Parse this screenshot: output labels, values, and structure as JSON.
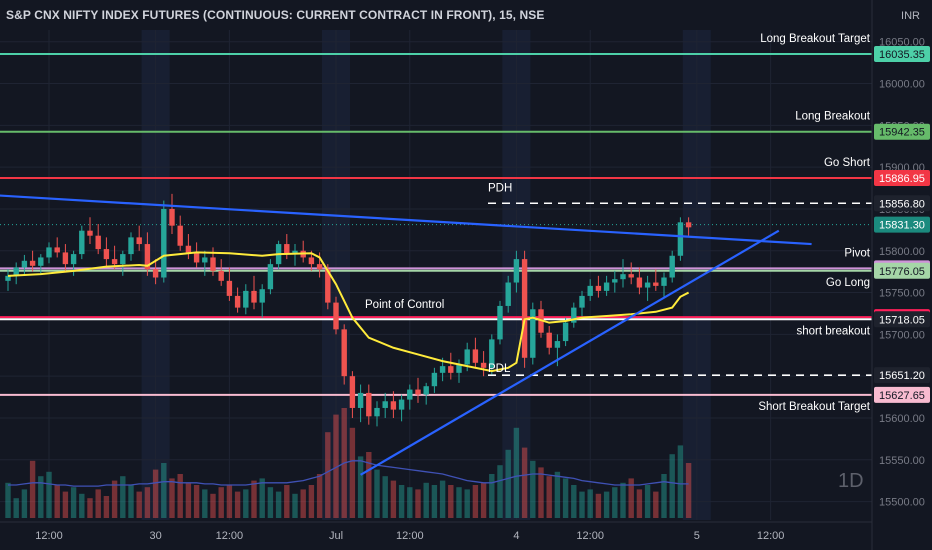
{
  "header": {
    "title": "S&P CNX NIFTY INDEX FUTURES (CONTINUOUS: CURRENT CONTRACT IN FRONT), 15, NSE",
    "currency": "INR"
  },
  "watermark": "1D",
  "chart_data": {
    "type": "candlestick",
    "ylim": [
      15478,
      16064
    ],
    "y_ticks": [
      {
        "value": 16050,
        "label": "16050.00"
      },
      {
        "value": 16000,
        "label": "16000.00"
      },
      {
        "value": 15950,
        "label": "15950.00"
      },
      {
        "value": 15900,
        "label": "15900.00"
      },
      {
        "value": 15850,
        "label": "15850.00"
      },
      {
        "value": 15800,
        "label": "15800.00"
      },
      {
        "value": 15750,
        "label": "15750.00"
      },
      {
        "value": 15700,
        "label": "15700.00"
      },
      {
        "value": 15650,
        "label": "15650.00"
      },
      {
        "value": 15600,
        "label": "15600.00"
      },
      {
        "value": 15550,
        "label": "15550.00"
      },
      {
        "value": 15500,
        "label": "15500.00"
      }
    ],
    "x_ticks": [
      {
        "label": "12:00",
        "slot": 5
      },
      {
        "label": "30",
        "slot": 18
      },
      {
        "label": "12:00",
        "slot": 27
      },
      {
        "label": "Jul",
        "slot": 40
      },
      {
        "label": "12:00",
        "slot": 49
      },
      {
        "label": "4",
        "slot": 62
      },
      {
        "label": "12:00",
        "slot": 71
      },
      {
        "label": "5",
        "slot": 84
      },
      {
        "label": "12:00",
        "slot": 93
      }
    ],
    "levels": [
      {
        "label": "Long Breakout Target",
        "value": 16035.35,
        "price": "16035.35",
        "color": "#4dd0a8",
        "style": "solid"
      },
      {
        "label": "Long Breakout",
        "value": 15942.35,
        "price": "15942.35",
        "color": "#66bb6a",
        "style": "solid"
      },
      {
        "label": "Go Short",
        "value": 15886.95,
        "price": "15886.95",
        "color": "#f23645",
        "style": "solid"
      },
      {
        "label": "PDH",
        "value": 15856.8,
        "price": "15856.80",
        "color": "#ffffff",
        "style": "dashed"
      },
      {
        "label": "",
        "value": 15831.3,
        "price": "15831.30",
        "color": "#26a69a",
        "style": "dotted"
      },
      {
        "label": "Pivot",
        "value": 15778.95,
        "price": "15778.95",
        "color": "#ce93d8",
        "style": "solid"
      },
      {
        "label": "Go Long",
        "value": 15776.05,
        "price": "15776.05",
        "color": "#a5d6a7",
        "style": "solid"
      },
      {
        "label": "Point of Control",
        "value": 15720.65,
        "price": "15720.65",
        "color": "#ff1f5a",
        "style": "solid"
      },
      {
        "label": "short breakout",
        "value": 15718.05,
        "price": "15718.05",
        "color": "#ffffff",
        "style": "solid"
      },
      {
        "label": "PDL",
        "value": 15651.2,
        "price": "15651.20",
        "color": "#ffffff",
        "style": "dashed"
      },
      {
        "label": "Short  Breakout Target",
        "value": 15627.65,
        "price": "15627.65",
        "color": "#f8bbd0",
        "style": "solid"
      }
    ],
    "candles": [
      [
        15764,
        15778,
        15752,
        15770
      ],
      [
        15770,
        15786,
        15760,
        15780
      ],
      [
        15780,
        15795,
        15770,
        15788
      ],
      [
        15788,
        15800,
        15775,
        15782
      ],
      [
        15782,
        15796,
        15772,
        15792
      ],
      [
        15792,
        15810,
        15785,
        15804
      ],
      [
        15804,
        15816,
        15792,
        15798
      ],
      [
        15798,
        15808,
        15776,
        15784
      ],
      [
        15784,
        15800,
        15770,
        15796
      ],
      [
        15796,
        15830,
        15790,
        15824
      ],
      [
        15824,
        15840,
        15808,
        15818
      ],
      [
        15818,
        15832,
        15796,
        15802
      ],
      [
        15802,
        15816,
        15780,
        15790
      ],
      [
        15790,
        15806,
        15778,
        15784
      ],
      [
        15784,
        15800,
        15770,
        15796
      ],
      [
        15796,
        15822,
        15788,
        15816
      ],
      [
        15816,
        15830,
        15800,
        15808
      ],
      [
        15808,
        15822,
        15770,
        15778
      ],
      [
        15778,
        15790,
        15760,
        15768
      ],
      [
        15768,
        15860,
        15762,
        15850
      ],
      [
        15850,
        15868,
        15820,
        15830
      ],
      [
        15830,
        15842,
        15800,
        15806
      ],
      [
        15806,
        15820,
        15790,
        15798
      ],
      [
        15798,
        15810,
        15780,
        15786
      ],
      [
        15786,
        15800,
        15770,
        15792
      ],
      [
        15792,
        15804,
        15770,
        15776
      ],
      [
        15776,
        15790,
        15758,
        15764
      ],
      [
        15764,
        15780,
        15740,
        15746
      ],
      [
        15746,
        15756,
        15726,
        15732
      ],
      [
        15732,
        15760,
        15724,
        15752
      ],
      [
        15752,
        15770,
        15730,
        15738
      ],
      [
        15738,
        15760,
        15720,
        15754
      ],
      [
        15754,
        15790,
        15748,
        15784
      ],
      [
        15784,
        15812,
        15778,
        15808
      ],
      [
        15808,
        15820,
        15790,
        15796
      ],
      [
        15796,
        15808,
        15782,
        15800
      ],
      [
        15800,
        15812,
        15786,
        15792
      ],
      [
        15792,
        15800,
        15776,
        15784
      ],
      [
        15784,
        15798,
        15768,
        15778
      ],
      [
        15778,
        15784,
        15730,
        15738
      ],
      [
        15738,
        15745,
        15700,
        15706
      ],
      [
        15706,
        15712,
        15640,
        15650
      ],
      [
        15650,
        15656,
        15600,
        15612
      ],
      [
        15612,
        15640,
        15595,
        15630
      ],
      [
        15630,
        15640,
        15592,
        15602
      ],
      [
        15602,
        15620,
        15590,
        15612
      ],
      [
        15612,
        15630,
        15600,
        15620
      ],
      [
        15620,
        15632,
        15600,
        15610
      ],
      [
        15610,
        15628,
        15596,
        15622
      ],
      [
        15622,
        15640,
        15610,
        15634
      ],
      [
        15634,
        15648,
        15618,
        15628
      ],
      [
        15628,
        15642,
        15616,
        15638
      ],
      [
        15638,
        15660,
        15630,
        15654
      ],
      [
        15654,
        15672,
        15644,
        15662
      ],
      [
        15662,
        15678,
        15646,
        15654
      ],
      [
        15654,
        15670,
        15642,
        15664
      ],
      [
        15664,
        15690,
        15656,
        15682
      ],
      [
        15682,
        15696,
        15660,
        15666
      ],
      [
        15666,
        15680,
        15650,
        15660
      ],
      [
        15660,
        15700,
        15652,
        15694
      ],
      [
        15694,
        15740,
        15688,
        15734
      ],
      [
        15734,
        15770,
        15726,
        15762
      ],
      [
        15762,
        15800,
        15750,
        15790
      ],
      [
        15790,
        15800,
        15660,
        15672
      ],
      [
        15672,
        15738,
        15664,
        15730
      ],
      [
        15730,
        15740,
        15696,
        15702
      ],
      [
        15702,
        15710,
        15676,
        15684
      ],
      [
        15684,
        15700,
        15662,
        15692
      ],
      [
        15692,
        15720,
        15686,
        15714
      ],
      [
        15714,
        15738,
        15708,
        15732
      ],
      [
        15732,
        15752,
        15722,
        15746
      ],
      [
        15746,
        15766,
        15740,
        15758
      ],
      [
        15758,
        15770,
        15744,
        15752
      ],
      [
        15752,
        15770,
        15746,
        15762
      ],
      [
        15762,
        15776,
        15750,
        15766
      ],
      [
        15766,
        15790,
        15756,
        15772
      ],
      [
        15772,
        15786,
        15760,
        15768
      ],
      [
        15768,
        15780,
        15748,
        15756
      ],
      [
        15756,
        15770,
        15740,
        15762
      ],
      [
        15762,
        15778,
        15752,
        15758
      ],
      [
        15758,
        15774,
        15744,
        15768
      ],
      [
        15768,
        15800,
        15762,
        15794
      ],
      [
        15794,
        15840,
        15788,
        15834
      ],
      [
        15834,
        15840,
        15818,
        15828
      ]
    ],
    "vwap": [
      [
        0,
        15770
      ],
      [
        4,
        15772
      ],
      [
        8,
        15776
      ],
      [
        12,
        15781
      ],
      [
        16,
        15783
      ],
      [
        17,
        15782
      ],
      [
        19,
        15794
      ],
      [
        23,
        15798
      ],
      [
        27,
        15797
      ],
      [
        31,
        15794
      ],
      [
        33,
        15796
      ],
      [
        37,
        15797
      ],
      [
        38,
        15792
      ],
      [
        40,
        15760
      ],
      [
        42,
        15720
      ],
      [
        44,
        15696
      ],
      [
        47,
        15684
      ],
      [
        50,
        15676
      ],
      [
        53,
        15668
      ],
      [
        56,
        15662
      ],
      [
        59,
        15656
      ],
      [
        61,
        15660
      ],
      [
        62,
        15666
      ],
      [
        63,
        15718
      ],
      [
        64,
        15720
      ],
      [
        66,
        15714
      ],
      [
        68,
        15716
      ],
      [
        70,
        15720
      ],
      [
        73,
        15722
      ],
      [
        76,
        15724
      ],
      [
        79,
        15727
      ],
      [
        81,
        15732
      ],
      [
        82,
        15745
      ],
      [
        83,
        15750
      ]
    ],
    "trendlines": [
      {
        "from": [
          -1,
          15866
        ],
        "to": [
          98,
          15808
        ]
      },
      {
        "from": [
          43,
          15532
        ],
        "to": [
          94,
          15824
        ]
      }
    ],
    "volume": [
      32,
      18,
      26,
      52,
      38,
      42,
      30,
      24,
      28,
      22,
      18,
      26,
      20,
      34,
      38,
      30,
      24,
      28,
      44,
      50,
      36,
      40,
      32,
      30,
      26,
      22,
      28,
      30,
      24,
      26,
      34,
      36,
      28,
      24,
      30,
      22,
      26,
      30,
      40,
      78,
      94,
      100,
      82,
      56,
      60,
      44,
      38,
      34,
      30,
      28,
      26,
      32,
      30,
      34,
      30,
      28,
      26,
      30,
      32,
      40,
      48,
      62,
      82,
      64,
      52,
      46,
      38,
      42,
      36,
      30,
      24,
      26,
      22,
      24,
      28,
      32,
      36,
      26,
      30,
      24,
      40,
      58,
      66,
      50
    ],
    "volume_ma": [
      30,
      30,
      31,
      32,
      32,
      31,
      30,
      30,
      29,
      29,
      29,
      29,
      30,
      30,
      30,
      30,
      31,
      31,
      32,
      33,
      33,
      32,
      32,
      32,
      31,
      31,
      30,
      30,
      30,
      30,
      31,
      32,
      32,
      32,
      32,
      33,
      34,
      36,
      38,
      42,
      46,
      50,
      52,
      52,
      50,
      48,
      47,
      46,
      45,
      44,
      43,
      42,
      41,
      40,
      38,
      36,
      34,
      33,
      32,
      32,
      34,
      36,
      38,
      39,
      40,
      40,
      39,
      38,
      37,
      36,
      34,
      33,
      32,
      31,
      30,
      30,
      30,
      30,
      31,
      32,
      33,
      32,
      31,
      31
    ]
  }
}
